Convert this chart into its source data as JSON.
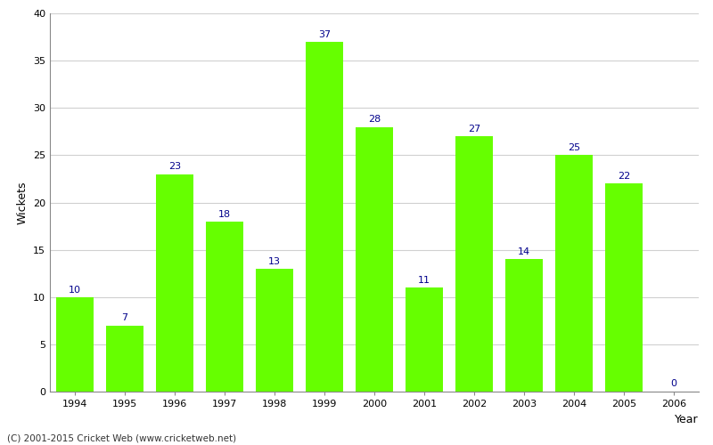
{
  "years": [
    1994,
    1995,
    1996,
    1997,
    1998,
    1999,
    2000,
    2001,
    2002,
    2003,
    2004,
    2005,
    2006
  ],
  "wickets": [
    10,
    7,
    23,
    18,
    13,
    37,
    28,
    11,
    27,
    14,
    25,
    22,
    0
  ],
  "bar_color": "#66ff00",
  "label_color": "#00008B",
  "xlabel": "Year",
  "ylabel": "Wickets",
  "ylim": [
    0,
    40
  ],
  "yticks": [
    0,
    5,
    10,
    15,
    20,
    25,
    30,
    35,
    40
  ],
  "footer": "(C) 2001-2015 Cricket Web (www.cricketweb.net)",
  "label_fontsize": 8,
  "axis_label_fontsize": 9,
  "tick_fontsize": 8,
  "grid_color": "#d0d0d0",
  "spine_color": "#888888",
  "bar_width": 0.75
}
